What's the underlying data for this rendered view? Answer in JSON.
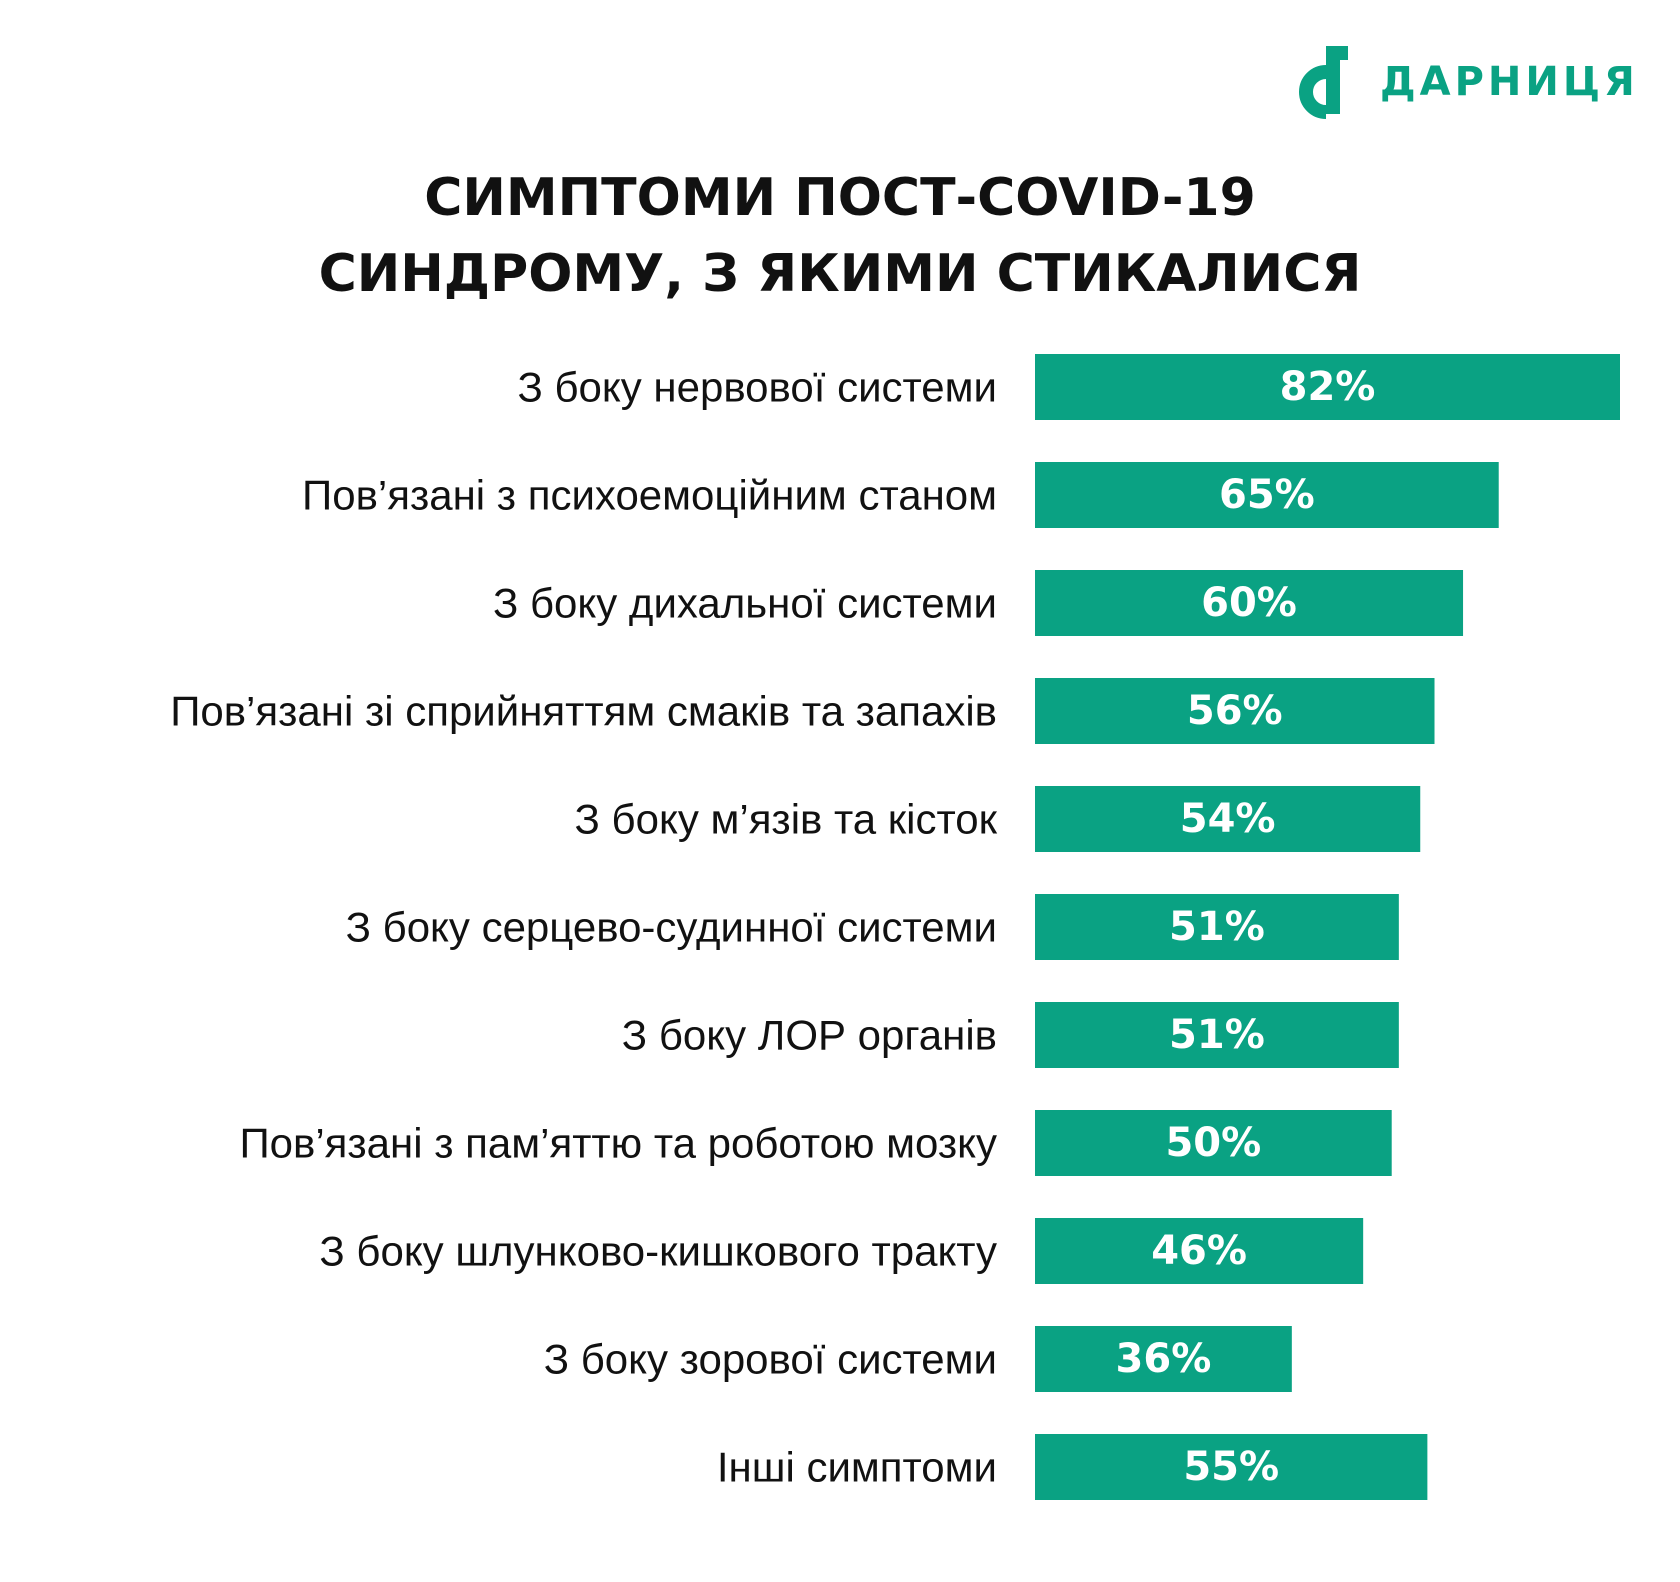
{
  "brand": {
    "name": "ДАРНИЦЯ",
    "logo_icon": "darnytsia-d-logo-icon",
    "color": "#0aa283"
  },
  "header": {
    "title_line1": "СИМПТОМИ ПОСТ-COVID-19",
    "title_line2": "СИНДРОМУ, З ЯКИМИ СТИКАЛИСЯ"
  },
  "colors": {
    "bar": "#0aa283",
    "label_text": "#111111",
    "value_text": "#ffffff",
    "background": "#ffffff"
  },
  "chart_data": {
    "type": "bar",
    "orientation": "horizontal",
    "title": "СИМПТОМИ ПОСТ-COVID-19 СИНДРОМУ, З ЯКИМИ СТИКАЛИСЯ",
    "unit": "%",
    "categories": [
      "З боку нервової системи",
      "Пов’язані з психоемоційним станом",
      "З боку дихальної системи",
      "Пов’язані зі сприйняттям смаків та запахів",
      "З боку м’язів та кісток",
      "З боку серцево-судинної системи",
      "З боку ЛОР органів",
      "Пов’язані з пам’яттю та роботою мозку",
      "З боку шлунково-кишкового тракту",
      "З боку зорової системи",
      "Інші симптоми"
    ],
    "values": [
      82,
      65,
      60,
      56,
      54,
      51,
      51,
      50,
      46,
      36,
      55
    ],
    "value_labels": [
      "82%",
      "65%",
      "60%",
      "56%",
      "54%",
      "51%",
      "51%",
      "50%",
      "46%",
      "36%",
      "55%"
    ],
    "xlim": [
      0,
      82
    ],
    "grid": false,
    "legend": "none"
  }
}
